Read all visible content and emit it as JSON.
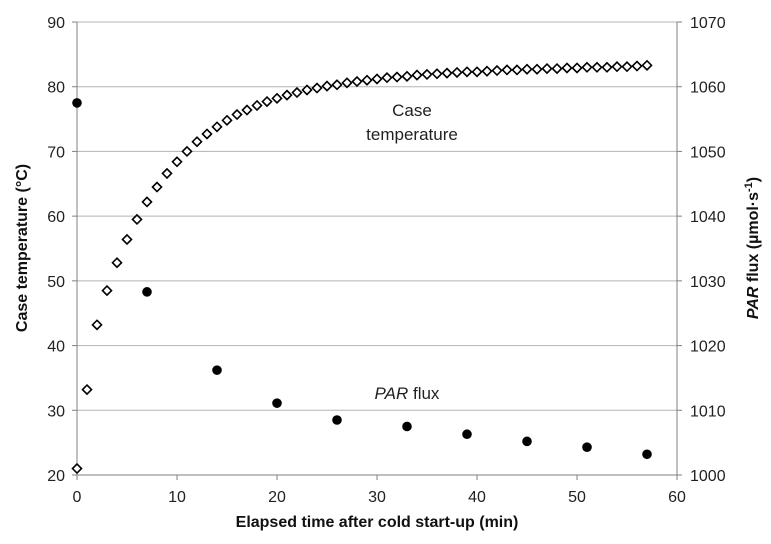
{
  "chart_data": {
    "type": "scatter",
    "title": "",
    "xlabel": "Elapsed time after cold start-up (min)",
    "ylabel_left": "Case temperature (°C)",
    "ylabel_right_italic": "PAR",
    "ylabel_right_rest": " flux (µmol·s",
    "ylabel_right_sup": "-1",
    "ylabel_right_close": ")",
    "xlim": [
      0,
      60
    ],
    "ylim_left": [
      20,
      90
    ],
    "ylim_right": [
      1000,
      1070
    ],
    "x_ticks": [
      "0",
      "10",
      "20",
      "30",
      "40",
      "50",
      "60"
    ],
    "y_left_ticks": [
      "20",
      "30",
      "40",
      "50",
      "60",
      "70",
      "80",
      "90"
    ],
    "y_right_ticks": [
      "1000",
      "1010",
      "1020",
      "1030",
      "1040",
      "1050",
      "1060",
      "1070"
    ],
    "grid": "horizontal",
    "series": [
      {
        "label_line1": "Case",
        "label_line2": "temperature",
        "axis": "left",
        "marker": "open-diamond",
        "x": [
          0,
          1,
          2,
          3,
          4,
          5,
          6,
          7,
          8,
          9,
          10,
          11,
          12,
          13,
          14,
          15,
          16,
          17,
          18,
          19,
          20,
          21,
          22,
          23,
          24,
          25,
          26,
          27,
          28,
          29,
          30,
          31,
          32,
          33,
          34,
          35,
          36,
          37,
          38,
          39,
          40,
          41,
          42,
          43,
          44,
          45,
          46,
          47,
          48,
          49,
          50,
          51,
          52,
          53,
          54,
          55,
          56,
          57
        ],
        "y": [
          21.0,
          33.2,
          43.2,
          48.5,
          52.8,
          56.4,
          59.5,
          62.2,
          64.5,
          66.6,
          68.4,
          70.0,
          71.5,
          72.7,
          73.8,
          74.8,
          75.7,
          76.4,
          77.1,
          77.7,
          78.2,
          78.7,
          79.1,
          79.5,
          79.8,
          80.1,
          80.3,
          80.6,
          80.8,
          81.0,
          81.2,
          81.4,
          81.5,
          81.6,
          81.8,
          81.9,
          82.0,
          82.1,
          82.2,
          82.3,
          82.3,
          82.4,
          82.5,
          82.6,
          82.6,
          82.7,
          82.7,
          82.8,
          82.8,
          82.9,
          82.9,
          83.0,
          83.0,
          83.0,
          83.1,
          83.1,
          83.2,
          83.3
        ]
      },
      {
        "label_italic": "PAR",
        "label_rest": " flux",
        "axis": "right",
        "marker": "filled-circle",
        "x": [
          0,
          7,
          14,
          20,
          26,
          33,
          39,
          45,
          51,
          57
        ],
        "y": [
          1057.5,
          1028.3,
          1016.2,
          1011.1,
          1008.5,
          1007.5,
          1006.3,
          1005.2,
          1004.3,
          1003.2
        ]
      }
    ]
  }
}
